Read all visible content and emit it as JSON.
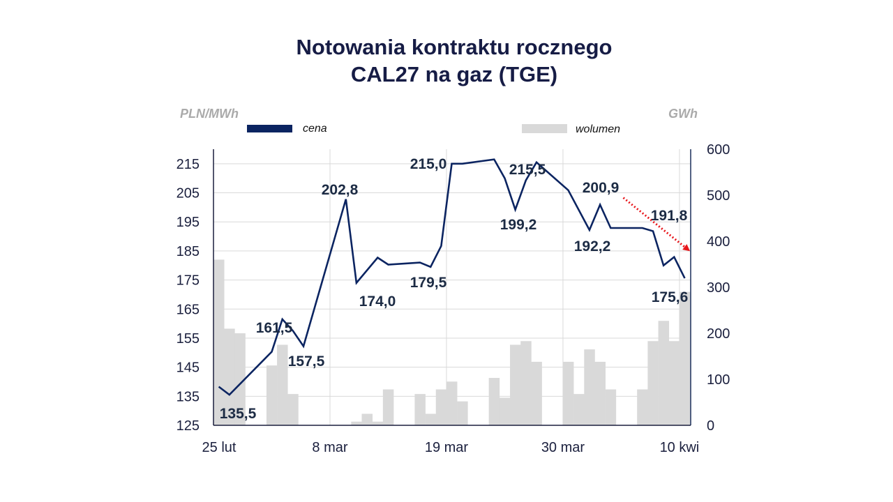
{
  "chart_data": {
    "type": "line+bar",
    "title": [
      "Notowania kontraktu rocznego",
      "CAL27 na gaz (TGE)"
    ],
    "ylabel_left": "PLN/MWh",
    "ylabel_right": "GWh",
    "ylim_left": [
      125,
      220
    ],
    "ylim_right": [
      0,
      600
    ],
    "yticks_left": [
      125,
      135,
      145,
      155,
      165,
      175,
      185,
      195,
      205,
      215
    ],
    "yticks_right": [
      0,
      100,
      200,
      300,
      400,
      500,
      600
    ],
    "x_ticks": [
      {
        "day": 0,
        "label": "25 lut"
      },
      {
        "day": 11,
        "label": "8 mar"
      },
      {
        "day": 22,
        "label": "19 mar"
      },
      {
        "day": 33,
        "label": "30 mar"
      },
      {
        "day": 44,
        "label": "10 kwi"
      }
    ],
    "x_note": "day = days since 25 Feb",
    "legend": [
      {
        "name": "cena",
        "color": "#0b2461"
      },
      {
        "name": "wolumen",
        "color": "#d9d9d9"
      }
    ],
    "legend_placement": "top",
    "grid": true,
    "series": [
      {
        "name": "cena",
        "type": "line",
        "axis": "left",
        "color": "#0b2461",
        "points": [
          [
            0,
            138.3
          ],
          [
            1,
            135.5
          ],
          [
            5,
            150.3
          ],
          [
            6,
            161.5
          ],
          [
            7,
            157.5
          ],
          [
            8,
            152.2
          ],
          [
            12,
            202.8
          ],
          [
            13,
            174.0
          ],
          [
            15,
            182.7
          ],
          [
            16,
            180.3
          ],
          [
            19,
            181.0
          ],
          [
            20,
            179.5
          ],
          [
            21,
            186.7
          ],
          [
            22,
            215.0
          ],
          [
            23,
            215.0
          ],
          [
            26,
            216.5
          ],
          [
            27,
            210.0
          ],
          [
            28,
            199.2
          ],
          [
            29,
            209.3
          ],
          [
            30,
            215.5
          ],
          [
            33,
            205.9
          ],
          [
            35,
            192.2
          ],
          [
            36,
            200.9
          ],
          [
            37,
            192.9
          ],
          [
            40,
            192.9
          ],
          [
            41,
            191.8
          ],
          [
            42,
            180.0
          ],
          [
            43,
            182.9
          ],
          [
            44,
            175.6
          ]
        ]
      },
      {
        "name": "wolumen",
        "type": "bar",
        "axis": "right",
        "color": "#d9d9d9",
        "points": [
          [
            0,
            360
          ],
          [
            1,
            210
          ],
          [
            2,
            200
          ],
          [
            5,
            130
          ],
          [
            6,
            175
          ],
          [
            7,
            68
          ],
          [
            13,
            8
          ],
          [
            14,
            25
          ],
          [
            15,
            8
          ],
          [
            16,
            78
          ],
          [
            19,
            68
          ],
          [
            20,
            25
          ],
          [
            21,
            78
          ],
          [
            22,
            95
          ],
          [
            23,
            52
          ],
          [
            26,
            103
          ],
          [
            27,
            60
          ],
          [
            28,
            175
          ],
          [
            29,
            183
          ],
          [
            30,
            138
          ],
          [
            33,
            138
          ],
          [
            34,
            68
          ],
          [
            35,
            165
          ],
          [
            36,
            138
          ],
          [
            37,
            78
          ],
          [
            40,
            78
          ],
          [
            41,
            183
          ],
          [
            42,
            227
          ],
          [
            43,
            183
          ],
          [
            44,
            290
          ]
        ]
      }
    ],
    "annotations": [
      {
        "day": 1,
        "text": "135,5"
      },
      {
        "day": 6,
        "text": "161,5"
      },
      {
        "day": 7,
        "text": "157,5"
      },
      {
        "day": 12,
        "text": "202,8"
      },
      {
        "day": 13,
        "text": "174,0"
      },
      {
        "day": 20,
        "text": "179,5"
      },
      {
        "day": 22,
        "text": "215,0"
      },
      {
        "day": 28,
        "text": "199,2"
      },
      {
        "day": 30,
        "text": "215,5"
      },
      {
        "day": 36,
        "text": "200,9"
      },
      {
        "day": 35,
        "text": "192,2"
      },
      {
        "day": 41,
        "text": "191,8"
      },
      {
        "day": 44,
        "text": "175,6"
      }
    ],
    "trend_arrow": {
      "color": "#e8161b",
      "from": [
        38.2,
        203.3
      ],
      "to": [
        44.5,
        184.9
      ]
    }
  }
}
